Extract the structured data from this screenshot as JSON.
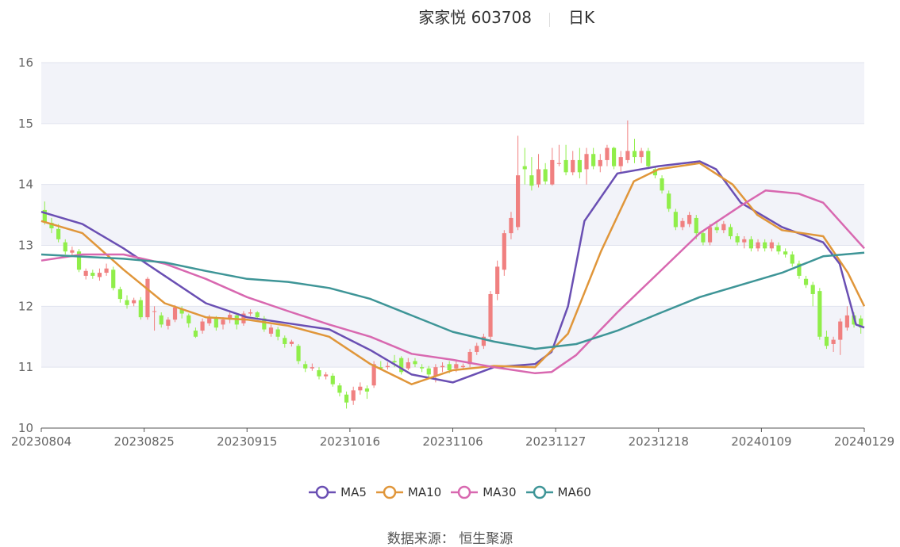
{
  "title": {
    "main": "家家悦 603708",
    "period": "日K"
  },
  "source": {
    "label": "数据来源：",
    "value": "恒生聚源"
  },
  "colors": {
    "up": "#f08080",
    "down": "#90ee4a",
    "MA5": "#6a4fb3",
    "MA10": "#e0963a",
    "MA30": "#d868b0",
    "MA60": "#3e9597",
    "band": "#f2f3f9",
    "grid": "#e0e3ee",
    "axis": "#666666"
  },
  "chart_data": {
    "type": "candlestick",
    "ylim": [
      10,
      16
    ],
    "y_ticks": [
      "10",
      "11",
      "12",
      "13",
      "14",
      "15",
      "16"
    ],
    "x_tick_labels": [
      "20230804",
      "20230825",
      "20230915",
      "20231016",
      "20231106",
      "20231127",
      "20231218",
      "20240109",
      "20240129"
    ],
    "legend": [
      "MA5",
      "MA10",
      "MA30",
      "MA60"
    ],
    "candles": [
      [
        13.58,
        13.38,
        13.72,
        13.34
      ],
      [
        13.37,
        13.28,
        13.45,
        13.2
      ],
      [
        13.27,
        13.1,
        13.35,
        13.05
      ],
      [
        13.05,
        12.9,
        13.1,
        12.85
      ],
      [
        12.88,
        12.92,
        12.98,
        12.82
      ],
      [
        12.9,
        12.6,
        12.94,
        12.56
      ],
      [
        12.5,
        12.58,
        12.62,
        12.44
      ],
      [
        12.55,
        12.5,
        12.6,
        12.45
      ],
      [
        12.48,
        12.55,
        12.62,
        12.42
      ],
      [
        12.55,
        12.62,
        12.7,
        12.5
      ],
      [
        12.6,
        12.3,
        12.65,
        12.26
      ],
      [
        12.28,
        12.12,
        12.32,
        12.06
      ],
      [
        12.1,
        12.02,
        12.18,
        11.96
      ],
      [
        12.05,
        12.1,
        12.14,
        12.0
      ],
      [
        12.1,
        11.82,
        12.15,
        11.78
      ],
      [
        11.82,
        12.45,
        12.48,
        11.78
      ],
      [
        11.92,
        11.92,
        12.0,
        11.6
      ],
      [
        11.85,
        11.7,
        11.9,
        11.65
      ],
      [
        11.68,
        11.78,
        11.82,
        11.62
      ],
      [
        11.78,
        11.98,
        12.02,
        11.74
      ],
      [
        11.96,
        11.88,
        12.0,
        11.8
      ],
      [
        11.85,
        11.72,
        11.88,
        11.65
      ],
      [
        11.6,
        11.5,
        11.65,
        11.48
      ],
      [
        11.6,
        11.75,
        11.8,
        11.55
      ],
      [
        11.72,
        11.82,
        11.86,
        11.68
      ],
      [
        11.8,
        11.65,
        11.84,
        11.6
      ],
      [
        11.7,
        11.78,
        11.82,
        11.62
      ],
      [
        11.78,
        11.86,
        11.9,
        11.72
      ],
      [
        11.85,
        11.7,
        11.88,
        11.62
      ],
      [
        11.72,
        11.88,
        11.92,
        11.68
      ],
      [
        11.88,
        11.9,
        11.95,
        11.84
      ],
      [
        11.9,
        11.82,
        11.92,
        11.78
      ],
      [
        11.8,
        11.62,
        11.84,
        11.58
      ],
      [
        11.55,
        11.65,
        11.7,
        11.5
      ],
      [
        11.62,
        11.5,
        11.66,
        11.44
      ],
      [
        11.48,
        11.38,
        11.52,
        11.32
      ],
      [
        11.38,
        11.42,
        11.45,
        11.34
      ],
      [
        11.35,
        11.1,
        11.38,
        11.05
      ],
      [
        11.05,
        10.98,
        11.1,
        10.92
      ],
      [
        10.98,
        11.0,
        11.06,
        10.94
      ],
      [
        10.95,
        10.85,
        11.0,
        10.8
      ],
      [
        10.85,
        10.88,
        10.92,
        10.8
      ],
      [
        10.86,
        10.72,
        10.9,
        10.68
      ],
      [
        10.7,
        10.58,
        10.74,
        10.52
      ],
      [
        10.55,
        10.42,
        10.6,
        10.32
      ],
      [
        10.45,
        10.62,
        10.68,
        10.38
      ],
      [
        10.62,
        10.68,
        10.75,
        10.55
      ],
      [
        10.65,
        10.6,
        10.7,
        10.48
      ],
      [
        10.7,
        11.05,
        11.1,
        10.66
      ],
      [
        11.0,
        10.98,
        11.1,
        10.95
      ],
      [
        11.0,
        11.02,
        11.08,
        10.96
      ],
      [
        11.1,
        11.08,
        11.2,
        11.0
      ],
      [
        11.15,
        10.92,
        11.18,
        10.88
      ],
      [
        10.98,
        11.08,
        11.15,
        10.95
      ],
      [
        11.1,
        11.05,
        11.15,
        11.0
      ],
      [
        11.0,
        10.98,
        11.05,
        10.92
      ],
      [
        10.98,
        10.88,
        11.02,
        10.82
      ],
      [
        10.85,
        11.0,
        11.05,
        10.75
      ],
      [
        11.0,
        11.02,
        11.08,
        10.92
      ],
      [
        11.05,
        10.95,
        11.1,
        10.9
      ],
      [
        10.98,
        11.05,
        11.1,
        10.92
      ],
      [
        11.0,
        11.02,
        11.06,
        10.95
      ],
      [
        11.05,
        11.25,
        11.3,
        11.0
      ],
      [
        11.25,
        11.35,
        11.4,
        11.2
      ],
      [
        11.35,
        11.5,
        11.55,
        11.3
      ],
      [
        11.5,
        12.2,
        12.25,
        11.45
      ],
      [
        12.2,
        12.65,
        12.75,
        12.1
      ],
      [
        12.6,
        13.2,
        13.25,
        12.5
      ],
      [
        13.2,
        13.45,
        13.55,
        13.1
      ],
      [
        13.3,
        14.15,
        14.8,
        13.25
      ],
      [
        14.3,
        14.25,
        14.6,
        14.0
      ],
      [
        14.15,
        13.98,
        14.45,
        13.9
      ],
      [
        14.0,
        14.25,
        14.5,
        13.95
      ],
      [
        14.25,
        14.05,
        14.35,
        14.0
      ],
      [
        14.0,
        14.4,
        14.6,
        13.98
      ],
      [
        14.35,
        14.35,
        14.65,
        14.3
      ],
      [
        14.4,
        14.2,
        14.65,
        14.15
      ],
      [
        14.2,
        14.4,
        14.55,
        14.15
      ],
      [
        14.4,
        14.2,
        14.6,
        14.1
      ],
      [
        14.25,
        14.5,
        14.6,
        14.0
      ],
      [
        14.5,
        14.3,
        14.6,
        14.25
      ],
      [
        14.3,
        14.4,
        14.5,
        14.2
      ],
      [
        14.4,
        14.6,
        14.65,
        14.3
      ],
      [
        14.6,
        14.3,
        14.62,
        14.25
      ],
      [
        14.3,
        14.45,
        14.55,
        14.2
      ],
      [
        14.4,
        14.55,
        15.05,
        14.35
      ],
      [
        14.55,
        14.45,
        14.75,
        14.35
      ],
      [
        14.45,
        14.55,
        14.6,
        14.35
      ],
      [
        14.55,
        14.3,
        14.6,
        14.25
      ],
      [
        14.25,
        14.15,
        14.3,
        14.1
      ],
      [
        14.1,
        13.9,
        14.15,
        13.85
      ],
      [
        13.85,
        13.6,
        13.9,
        13.55
      ],
      [
        13.55,
        13.3,
        13.6,
        13.25
      ],
      [
        13.3,
        13.4,
        13.45,
        13.25
      ],
      [
        13.35,
        13.5,
        13.55,
        13.3
      ],
      [
        13.45,
        13.2,
        13.5,
        13.1
      ],
      [
        13.2,
        13.05,
        13.25,
        13.0
      ],
      [
        13.05,
        13.3,
        13.35,
        13.0
      ],
      [
        13.3,
        13.25,
        13.4,
        13.2
      ],
      [
        13.25,
        13.35,
        13.4,
        13.2
      ],
      [
        13.3,
        13.15,
        13.35,
        13.1
      ],
      [
        13.15,
        13.05,
        13.2,
        13.0
      ],
      [
        13.05,
        13.1,
        13.15,
        12.95
      ],
      [
        13.1,
        12.95,
        13.15,
        12.9
      ],
      [
        12.95,
        13.05,
        13.1,
        12.9
      ],
      [
        13.05,
        12.95,
        13.1,
        12.9
      ],
      [
        12.95,
        13.05,
        13.1,
        12.9
      ],
      [
        13.0,
        12.9,
        13.05,
        12.85
      ],
      [
        12.9,
        12.85,
        12.95,
        12.8
      ],
      [
        12.85,
        12.7,
        12.9,
        12.65
      ],
      [
        12.7,
        12.5,
        12.75,
        12.45
      ],
      [
        12.45,
        12.35,
        12.5,
        12.3
      ],
      [
        12.35,
        12.2,
        12.4,
        12.0
      ],
      [
        12.25,
        11.5,
        12.3,
        11.45
      ],
      [
        11.5,
        11.35,
        11.6,
        11.3
      ],
      [
        11.38,
        11.45,
        11.5,
        11.25
      ],
      [
        11.45,
        11.75,
        11.8,
        11.2
      ],
      [
        11.65,
        11.85,
        12.0,
        11.6
      ],
      [
        11.85,
        11.7,
        11.9,
        11.65
      ],
      [
        11.8,
        11.65,
        11.85,
        11.55
      ]
    ],
    "MA5": [
      [
        0,
        13.55
      ],
      [
        0.05,
        13.35
      ],
      [
        0.1,
        12.95
      ],
      [
        0.15,
        12.5
      ],
      [
        0.2,
        12.05
      ],
      [
        0.25,
        11.82
      ],
      [
        0.3,
        11.72
      ],
      [
        0.35,
        11.62
      ],
      [
        0.4,
        11.28
      ],
      [
        0.45,
        10.88
      ],
      [
        0.5,
        10.75
      ],
      [
        0.55,
        11.0
      ],
      [
        0.6,
        11.05
      ],
      [
        0.62,
        11.25
      ],
      [
        0.64,
        12.0
      ],
      [
        0.66,
        13.4
      ],
      [
        0.7,
        14.18
      ],
      [
        0.75,
        14.3
      ],
      [
        0.8,
        14.38
      ],
      [
        0.82,
        14.25
      ],
      [
        0.85,
        13.7
      ],
      [
        0.9,
        13.3
      ],
      [
        0.95,
        13.05
      ],
      [
        0.97,
        12.7
      ],
      [
        0.99,
        11.7
      ],
      [
        1.0,
        11.65
      ]
    ],
    "MA10": [
      [
        0,
        13.4
      ],
      [
        0.05,
        13.2
      ],
      [
        0.1,
        12.6
      ],
      [
        0.15,
        12.05
      ],
      [
        0.2,
        11.82
      ],
      [
        0.25,
        11.78
      ],
      [
        0.3,
        11.68
      ],
      [
        0.35,
        11.5
      ],
      [
        0.4,
        11.05
      ],
      [
        0.45,
        10.72
      ],
      [
        0.5,
        10.95
      ],
      [
        0.55,
        11.02
      ],
      [
        0.6,
        11.0
      ],
      [
        0.64,
        11.55
      ],
      [
        0.68,
        12.9
      ],
      [
        0.72,
        14.05
      ],
      [
        0.75,
        14.25
      ],
      [
        0.8,
        14.35
      ],
      [
        0.84,
        14.0
      ],
      [
        0.87,
        13.5
      ],
      [
        0.9,
        13.25
      ],
      [
        0.95,
        13.15
      ],
      [
        0.98,
        12.55
      ],
      [
        1.0,
        12.0
      ]
    ],
    "MA30": [
      [
        0,
        12.75
      ],
      [
        0.05,
        12.85
      ],
      [
        0.1,
        12.85
      ],
      [
        0.15,
        12.7
      ],
      [
        0.2,
        12.45
      ],
      [
        0.25,
        12.15
      ],
      [
        0.3,
        11.92
      ],
      [
        0.35,
        11.7
      ],
      [
        0.4,
        11.5
      ],
      [
        0.45,
        11.22
      ],
      [
        0.5,
        11.12
      ],
      [
        0.55,
        11.0
      ],
      [
        0.6,
        10.9
      ],
      [
        0.62,
        10.92
      ],
      [
        0.65,
        11.2
      ],
      [
        0.7,
        11.9
      ],
      [
        0.75,
        12.55
      ],
      [
        0.8,
        13.2
      ],
      [
        0.85,
        13.65
      ],
      [
        0.88,
        13.9
      ],
      [
        0.92,
        13.85
      ],
      [
        0.95,
        13.7
      ],
      [
        0.98,
        13.25
      ],
      [
        1.0,
        12.95
      ]
    ],
    "MA60": [
      [
        0,
        12.85
      ],
      [
        0.1,
        12.78
      ],
      [
        0.15,
        12.72
      ],
      [
        0.2,
        12.58
      ],
      [
        0.25,
        12.45
      ],
      [
        0.3,
        12.4
      ],
      [
        0.35,
        12.3
      ],
      [
        0.4,
        12.12
      ],
      [
        0.45,
        11.85
      ],
      [
        0.5,
        11.58
      ],
      [
        0.55,
        11.42
      ],
      [
        0.6,
        11.3
      ],
      [
        0.65,
        11.38
      ],
      [
        0.7,
        11.6
      ],
      [
        0.75,
        11.88
      ],
      [
        0.8,
        12.15
      ],
      [
        0.85,
        12.35
      ],
      [
        0.9,
        12.55
      ],
      [
        0.95,
        12.82
      ],
      [
        1.0,
        12.88
      ]
    ]
  }
}
